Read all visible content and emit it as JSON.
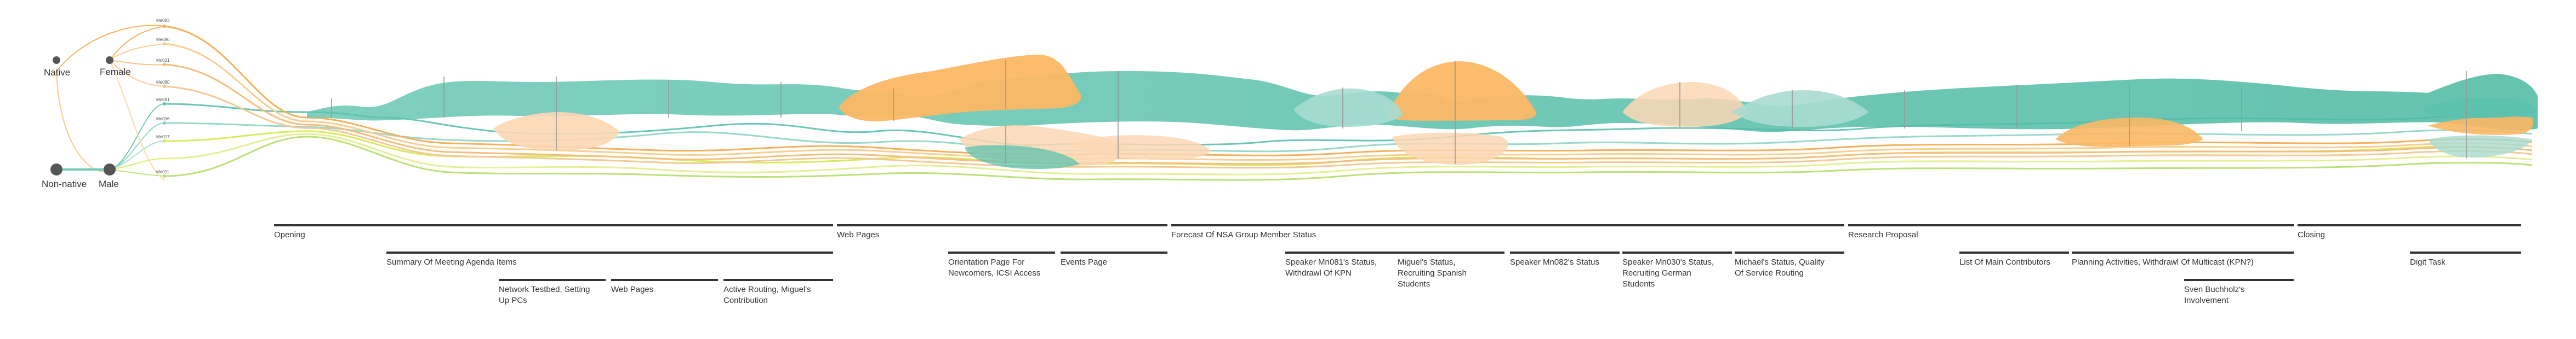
{
  "categories": {
    "native": "Native",
    "non_native": "Non-native",
    "female": "Female",
    "male": "Male"
  },
  "participants": [
    "Me083",
    "Me090",
    "Mn021",
    "Me080",
    "Mn081",
    "Mn036",
    "Me017",
    "Me011"
  ],
  "colors": {
    "teal": "#5cc2ad",
    "orange": "#fbb865",
    "light_orange": "#fcd7b4",
    "light_teal": "#a8dcd1",
    "yellow_green": "#d7e84c",
    "gray": "#555555",
    "line": "#333333"
  },
  "timeline": {
    "level1": [
      {
        "label": "Opening"
      },
      {
        "label": "Web Pages"
      },
      {
        "label": "Forecast Of NSA Group Member Status"
      },
      {
        "label": "Research Proposal"
      },
      {
        "label": "Closing"
      }
    ],
    "level2": [
      {
        "label": "Summary Of Meeting Agenda Items"
      },
      {
        "label": "Orientation Page For Newcomers, ICSI Access"
      },
      {
        "label": "Events Page"
      },
      {
        "label": "Speaker Mn081's Status, Withdrawl Of KPN"
      },
      {
        "label": "Miguel's Status, Recruiting Spanish Students"
      },
      {
        "label": "Speaker Mn082's Status"
      },
      {
        "label": "Speaker Mn030's Status, Recruiting German Students"
      },
      {
        "label": "Michael's Status, Quality Of Service Routing"
      },
      {
        "label": "List Of Main Contributors"
      },
      {
        "label": "Planning Activities, Withdrawl Of Multicast (KPN?)"
      },
      {
        "label": "Digit Task"
      }
    ],
    "level3": [
      {
        "label": "Network Testbed, Setting Up PCs"
      },
      {
        "label": "Web Pages"
      },
      {
        "label": "Active Routing, Miguel's Contribution"
      },
      {
        "label": "Sven Buchholz's Involvement"
      }
    ]
  }
}
